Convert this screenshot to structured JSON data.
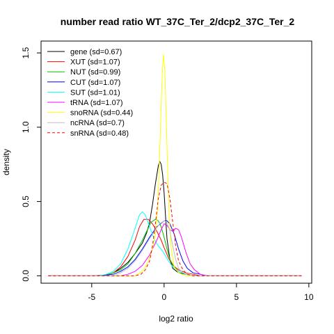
{
  "chart_data": {
    "type": "line",
    "title": "number read ratio WT_37C_Ter_2/dcp2_37C_Ter_2",
    "xlabel": "log2 ratio",
    "ylabel": "density",
    "xlim": [
      -8.5,
      10.2
    ],
    "ylim": [
      -0.05,
      1.58
    ],
    "x_ticks": [
      {
        "value": -5,
        "label": "-5"
      },
      {
        "value": 0,
        "label": "0"
      },
      {
        "value": 5,
        "label": "5"
      },
      {
        "value": 10,
        "label": "10"
      }
    ],
    "y_ticks": [
      {
        "value": 0,
        "label": "0.0"
      },
      {
        "value": 0.5,
        "label": "0.5"
      },
      {
        "value": 1.0,
        "label": "1.0"
      },
      {
        "value": 1.5,
        "label": "1.5"
      }
    ],
    "grid": false,
    "legend_position": "top-left",
    "series": [
      {
        "name": "gene (sd=0.67)",
        "color": "#000000",
        "dash": false,
        "points": [
          [
            -8,
            0
          ],
          [
            -5,
            0
          ],
          [
            -4,
            0.005
          ],
          [
            -3.5,
            0.02
          ],
          [
            -3,
            0.05
          ],
          [
            -2.5,
            0.09
          ],
          [
            -2,
            0.15
          ],
          [
            -1.5,
            0.22
          ],
          [
            -1.2,
            0.29
          ],
          [
            -1,
            0.36
          ],
          [
            -0.8,
            0.48
          ],
          [
            -0.6,
            0.62
          ],
          [
            -0.4,
            0.74
          ],
          [
            -0.3,
            0.77
          ],
          [
            -0.2,
            0.75
          ],
          [
            -0.1,
            0.68
          ],
          [
            0,
            0.56
          ],
          [
            0.1,
            0.4
          ],
          [
            0.2,
            0.25
          ],
          [
            0.4,
            0.11
          ],
          [
            0.6,
            0.05
          ],
          [
            1,
            0.02
          ],
          [
            1.5,
            0.01
          ],
          [
            2,
            0
          ],
          [
            5,
            0
          ],
          [
            9.5,
            0
          ]
        ]
      },
      {
        "name": "XUT (sd=1.07)",
        "color": "#ff0000",
        "dash": false,
        "points": [
          [
            -8,
            0
          ],
          [
            -4.5,
            0
          ],
          [
            -4,
            0.005
          ],
          [
            -3.5,
            0.02
          ],
          [
            -3,
            0.06
          ],
          [
            -2.5,
            0.13
          ],
          [
            -2,
            0.24
          ],
          [
            -1.7,
            0.33
          ],
          [
            -1.4,
            0.38
          ],
          [
            -1.1,
            0.38
          ],
          [
            -0.8,
            0.35
          ],
          [
            -0.5,
            0.3
          ],
          [
            -0.2,
            0.24
          ],
          [
            0,
            0.19
          ],
          [
            0.3,
            0.12
          ],
          [
            0.6,
            0.07
          ],
          [
            1,
            0.04
          ],
          [
            1.5,
            0.02
          ],
          [
            2,
            0.01
          ],
          [
            2.5,
            0
          ],
          [
            9.5,
            0
          ]
        ]
      },
      {
        "name": "NUT (sd=0.99)",
        "color": "#00c000",
        "dash": false,
        "points": [
          [
            -8,
            0
          ],
          [
            -4.5,
            0
          ],
          [
            -4,
            0.005
          ],
          [
            -3.5,
            0.02
          ],
          [
            -3,
            0.04
          ],
          [
            -2.5,
            0.08
          ],
          [
            -2,
            0.15
          ],
          [
            -1.5,
            0.24
          ],
          [
            -1.2,
            0.3
          ],
          [
            -0.9,
            0.36
          ],
          [
            -0.6,
            0.38
          ],
          [
            -0.4,
            0.37
          ],
          [
            -0.2,
            0.33
          ],
          [
            0,
            0.26
          ],
          [
            0.2,
            0.18
          ],
          [
            0.4,
            0.11
          ],
          [
            0.7,
            0.06
          ],
          [
            1,
            0.03
          ],
          [
            1.5,
            0.01
          ],
          [
            2,
            0
          ],
          [
            9.5,
            0
          ]
        ]
      },
      {
        "name": "CUT (sd=1.07)",
        "color": "#0000ff",
        "dash": false,
        "points": [
          [
            -8,
            0
          ],
          [
            -4.5,
            0
          ],
          [
            -4,
            0.005
          ],
          [
            -3.5,
            0.01
          ],
          [
            -3,
            0.03
          ],
          [
            -2.5,
            0.06
          ],
          [
            -2,
            0.11
          ],
          [
            -1.5,
            0.18
          ],
          [
            -1,
            0.26
          ],
          [
            -0.5,
            0.33
          ],
          [
            0,
            0.37
          ],
          [
            0.2,
            0.37
          ],
          [
            0.4,
            0.35
          ],
          [
            0.7,
            0.28
          ],
          [
            1,
            0.18
          ],
          [
            1.3,
            0.1
          ],
          [
            1.6,
            0.05
          ],
          [
            2,
            0.02
          ],
          [
            2.5,
            0.01
          ],
          [
            3,
            0
          ],
          [
            9.5,
            0
          ]
        ]
      },
      {
        "name": "SUT (sd=1.01)",
        "color": "#00ffff",
        "dash": false,
        "points": [
          [
            -8,
            0
          ],
          [
            -4.5,
            0
          ],
          [
            -4,
            0.01
          ],
          [
            -3.5,
            0.03
          ],
          [
            -3,
            0.08
          ],
          [
            -2.5,
            0.18
          ],
          [
            -2,
            0.32
          ],
          [
            -1.7,
            0.41
          ],
          [
            -1.5,
            0.43
          ],
          [
            -1.3,
            0.41
          ],
          [
            -1,
            0.33
          ],
          [
            -0.7,
            0.25
          ],
          [
            -0.4,
            0.2
          ],
          [
            -0.2,
            0.18
          ],
          [
            0,
            0.15
          ],
          [
            0.3,
            0.1
          ],
          [
            0.6,
            0.06
          ],
          [
            1,
            0.03
          ],
          [
            1.5,
            0.01
          ],
          [
            2,
            0
          ],
          [
            9.5,
            0
          ]
        ]
      },
      {
        "name": "tRNA (sd=1.07)",
        "color": "#ff00ff",
        "dash": false,
        "points": [
          [
            -8,
            0
          ],
          [
            -3,
            0
          ],
          [
            -2.5,
            0.01
          ],
          [
            -2,
            0.03
          ],
          [
            -1.5,
            0.07
          ],
          [
            -1,
            0.14
          ],
          [
            -0.5,
            0.24
          ],
          [
            -0.2,
            0.31
          ],
          [
            0,
            0.35
          ],
          [
            0.2,
            0.34
          ],
          [
            0.4,
            0.31
          ],
          [
            0.6,
            0.3
          ],
          [
            0.8,
            0.32
          ],
          [
            1,
            0.31
          ],
          [
            1.2,
            0.26
          ],
          [
            1.5,
            0.16
          ],
          [
            1.8,
            0.08
          ],
          [
            2.1,
            0.04
          ],
          [
            2.5,
            0.01
          ],
          [
            3,
            0
          ],
          [
            9.5,
            0
          ]
        ]
      },
      {
        "name": "snoRNA (sd=0.44)",
        "color": "#ffff00",
        "dash": false,
        "points": [
          [
            -8,
            0
          ],
          [
            -2,
            0
          ],
          [
            -1.8,
            0.01
          ],
          [
            -1.5,
            0.03
          ],
          [
            -1.3,
            0.06
          ],
          [
            -1,
            0.12
          ],
          [
            -0.8,
            0.18
          ],
          [
            -0.6,
            0.28
          ],
          [
            -0.45,
            0.45
          ],
          [
            -0.35,
            0.7
          ],
          [
            -0.25,
            1.0
          ],
          [
            -0.15,
            1.3
          ],
          [
            -0.05,
            1.49
          ],
          [
            0.05,
            1.38
          ],
          [
            0.15,
            1.05
          ],
          [
            0.25,
            0.7
          ],
          [
            0.35,
            0.4
          ],
          [
            0.5,
            0.18
          ],
          [
            0.7,
            0.06
          ],
          [
            1,
            0.02
          ],
          [
            1.5,
            0
          ],
          [
            9.5,
            0
          ]
        ]
      },
      {
        "name": "ncRNA (sd=0.7)",
        "color": "#bebebe",
        "dash": false,
        "points": [
          [
            -8,
            0
          ],
          [
            -3.5,
            0
          ],
          [
            -3,
            0.02
          ],
          [
            -2.5,
            0.05
          ],
          [
            -2,
            0.1
          ],
          [
            -1.5,
            0.17
          ],
          [
            -1,
            0.25
          ],
          [
            -0.6,
            0.31
          ],
          [
            -0.3,
            0.35
          ],
          [
            0,
            0.37
          ],
          [
            0.2,
            0.36
          ],
          [
            0.4,
            0.3
          ],
          [
            0.6,
            0.2
          ],
          [
            0.8,
            0.11
          ],
          [
            1,
            0.05
          ],
          [
            1.3,
            0.02
          ],
          [
            1.6,
            0.01
          ],
          [
            2,
            0
          ],
          [
            9.5,
            0
          ]
        ]
      },
      {
        "name": "snRNA (sd=0.48)",
        "color": "#ff0000",
        "dash": true,
        "points": [
          [
            -8,
            0
          ],
          [
            -2,
            0
          ],
          [
            -1.6,
            0.01
          ],
          [
            -1.3,
            0.04
          ],
          [
            -1,
            0.1
          ],
          [
            -0.8,
            0.2
          ],
          [
            -0.6,
            0.35
          ],
          [
            -0.4,
            0.52
          ],
          [
            -0.2,
            0.61
          ],
          [
            0,
            0.63
          ],
          [
            0.2,
            0.62
          ],
          [
            0.4,
            0.52
          ],
          [
            0.6,
            0.36
          ],
          [
            0.8,
            0.2
          ],
          [
            1,
            0.1
          ],
          [
            1.3,
            0.04
          ],
          [
            1.6,
            0.01
          ],
          [
            2,
            0
          ],
          [
            9.5,
            0
          ]
        ]
      }
    ]
  }
}
